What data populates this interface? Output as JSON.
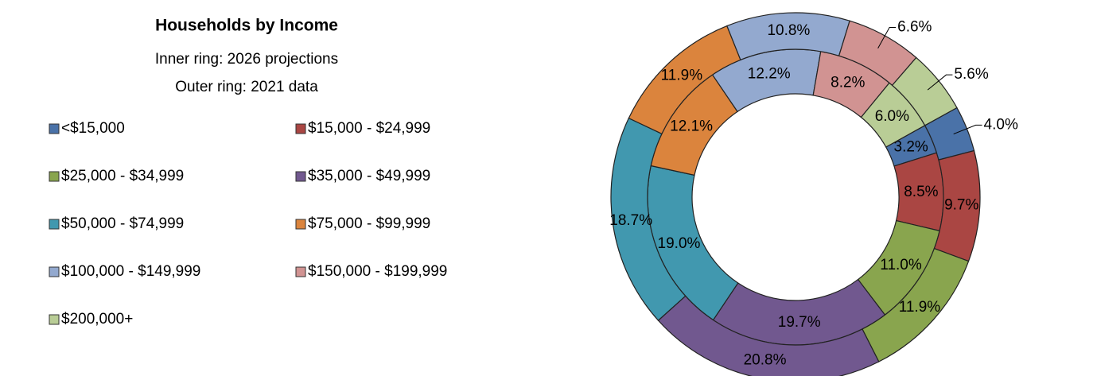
{
  "chart_data": {
    "type": "doughnut",
    "title": "Households by Income",
    "subtitle": [
      "Inner ring: 2026 projections",
      "Outer ring: 2021 data"
    ],
    "categories": [
      "<$15,000",
      "$15,000 - $24,999",
      "$25,000 - $34,999",
      "$35,000 - $49,999",
      "$50,000 - $74,999",
      "$75,000 - $99,999",
      "$100,000 - $149,999",
      "$150,000 - $199,999",
      "$200,000+"
    ],
    "colors": [
      "#4a72a8",
      "#aa4643",
      "#89a54e",
      "#71588f",
      "#4198af",
      "#db843d",
      "#93a9cf",
      "#d19392",
      "#b9cd96"
    ],
    "series": [
      {
        "values": [
          3.2,
          8.5,
          11.0,
          19.7,
          19.0,
          12.1,
          12.2,
          8.2,
          6.0
        ],
        "value_labels": [
          "3.2%",
          "8.5%",
          "11.0%",
          "19.7%",
          "19.0%",
          "12.1%",
          "12.2%",
          "8.2%",
          "6.0%"
        ]
      },
      {
        "values": [
          4.0,
          9.7,
          11.9,
          20.8,
          18.7,
          11.9,
          10.8,
          6.6,
          5.6
        ],
        "value_labels": [
          "4.0%",
          "9.7%",
          "11.9%",
          "20.8%",
          "18.7%",
          "11.9%",
          "10.8%",
          "6.6%",
          "5.6%"
        ]
      }
    ],
    "legend": "left"
  }
}
